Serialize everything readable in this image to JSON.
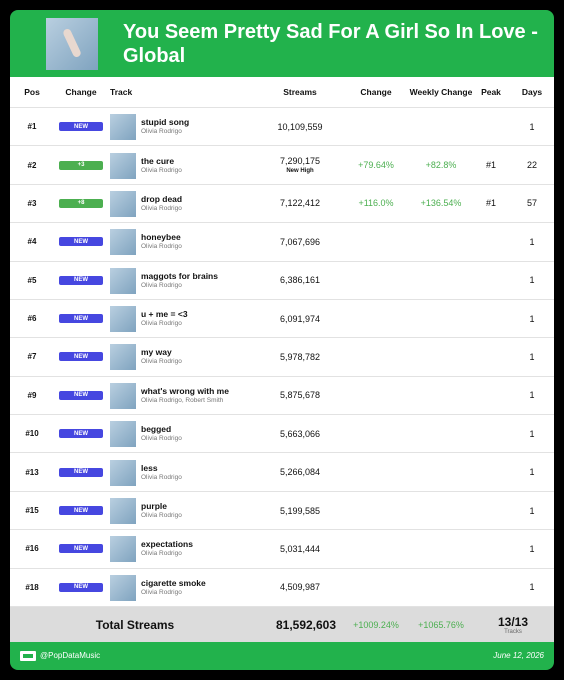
{
  "header": {
    "title": "You Seem Pretty Sad For A Girl So In Love - Global"
  },
  "table": {
    "columns": [
      "Pos",
      "Change",
      "Track",
      "Streams",
      "Change",
      "Weekly Change",
      "Peak",
      "Days"
    ],
    "new_color": "#4647e0",
    "up_color": "#4caf50",
    "rows": [
      {
        "pos": "#1",
        "change": "NEW",
        "color": "new",
        "title": "stupid song",
        "artist": "Olivia Rodrigo",
        "streams": "10,109,559",
        "days": "1"
      },
      {
        "pos": "#2",
        "change": "+3",
        "color": "up",
        "title": "the cure",
        "artist": "Olivia Rodrigo",
        "streams": "7,290,175",
        "note": "New High",
        "change_pct": "+79.64%",
        "weekly": "+82.8%",
        "peak": "#1",
        "days": "22"
      },
      {
        "pos": "#3",
        "change": "+8",
        "color": "up",
        "title": "drop dead",
        "artist": "Olivia Rodrigo",
        "streams": "7,122,412",
        "change_pct": "+116.0%",
        "weekly": "+136.54%",
        "peak": "#1",
        "days": "57"
      },
      {
        "pos": "#4",
        "change": "NEW",
        "color": "new",
        "title": "honeybee",
        "artist": "Olivia Rodrigo",
        "streams": "7,067,696",
        "days": "1"
      },
      {
        "pos": "#5",
        "change": "NEW",
        "color": "new",
        "title": "maggots for brains",
        "artist": "Olivia Rodrigo",
        "streams": "6,386,161",
        "days": "1"
      },
      {
        "pos": "#6",
        "change": "NEW",
        "color": "new",
        "title": "u + me = <3",
        "artist": "Olivia Rodrigo",
        "streams": "6,091,974",
        "days": "1"
      },
      {
        "pos": "#7",
        "change": "NEW",
        "color": "new",
        "title": "my way",
        "artist": "Olivia Rodrigo",
        "streams": "5,978,782",
        "days": "1"
      },
      {
        "pos": "#9",
        "change": "NEW",
        "color": "new",
        "title": "what's wrong with me",
        "artist": "Olivia Rodrigo, Robert Smith",
        "streams": "5,875,678",
        "days": "1"
      },
      {
        "pos": "#10",
        "change": "NEW",
        "color": "new",
        "title": "begged",
        "artist": "Olivia Rodrigo",
        "streams": "5,663,066",
        "days": "1"
      },
      {
        "pos": "#13",
        "change": "NEW",
        "color": "new",
        "title": "less",
        "artist": "Olivia Rodrigo",
        "streams": "5,266,084",
        "days": "1"
      },
      {
        "pos": "#15",
        "change": "NEW",
        "color": "new",
        "title": "purple",
        "artist": "Olivia Rodrigo",
        "streams": "5,199,585",
        "days": "1"
      },
      {
        "pos": "#16",
        "change": "NEW",
        "color": "new",
        "title": "expectations",
        "artist": "Olivia Rodrigo",
        "streams": "5,031,444",
        "days": "1"
      },
      {
        "pos": "#18",
        "change": "NEW",
        "color": "new",
        "title": "cigarette smoke",
        "artist": "Olivia Rodrigo",
        "streams": "4,509,987",
        "days": "1"
      }
    ]
  },
  "total": {
    "label": "Total Streams",
    "streams": "81,592,603",
    "change_pct": "+1009.24%",
    "weekly": "+1065.76%",
    "tracks": "13/13",
    "tracks_label": "Tracks"
  },
  "footer": {
    "handle": "@PopDataMusic",
    "date": "June 12, 2026"
  }
}
